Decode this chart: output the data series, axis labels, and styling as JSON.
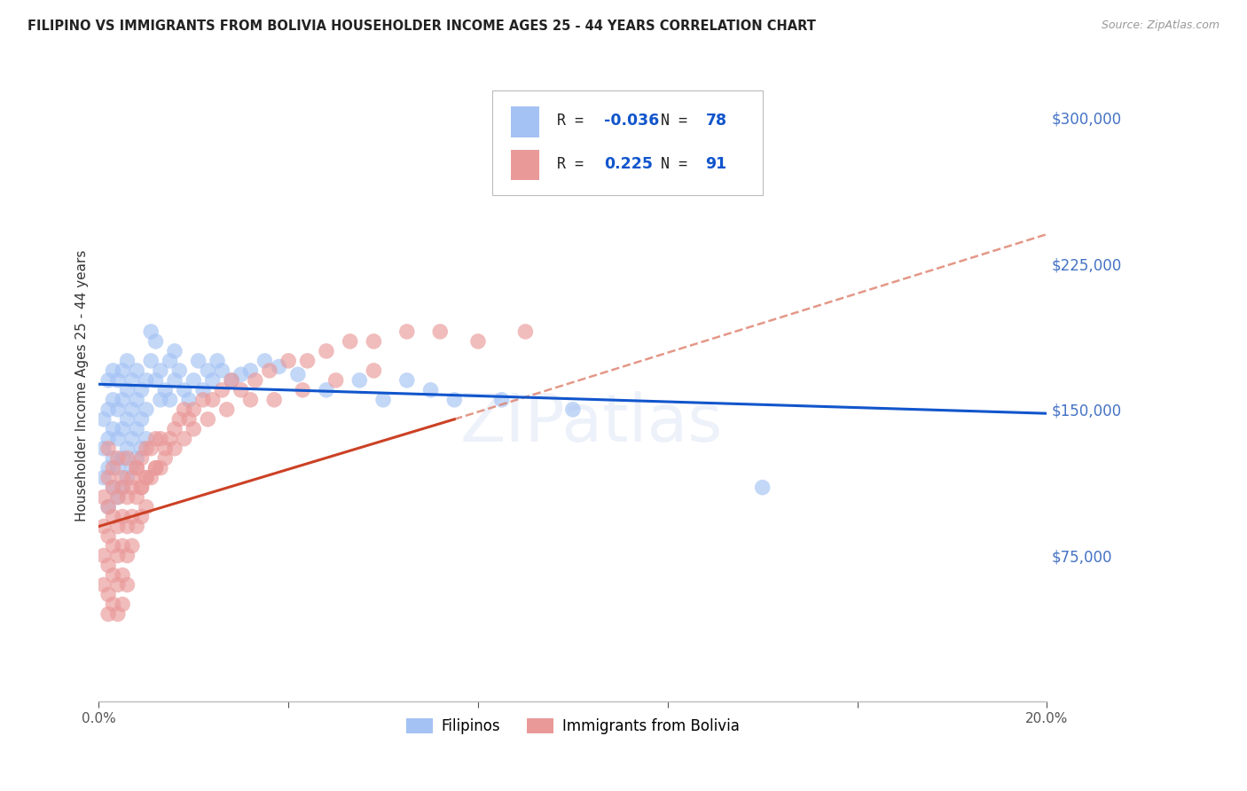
{
  "title": "FILIPINO VS IMMIGRANTS FROM BOLIVIA HOUSEHOLDER INCOME AGES 25 - 44 YEARS CORRELATION CHART",
  "source": "Source: ZipAtlas.com",
  "ylabel": "Householder Income Ages 25 - 44 years",
  "xlim": [
    0.0,
    0.2
  ],
  "ylim": [
    0,
    325000
  ],
  "ytick_labels_right": [
    "$75,000",
    "$150,000",
    "$225,000",
    "$300,000"
  ],
  "ytick_values_right": [
    75000,
    150000,
    225000,
    300000
  ],
  "color_filipino": "#a4c2f4",
  "color_bolivia": "#ea9999",
  "color_line_filipino": "#1155cc",
  "color_line_bolivia": "#cc4125",
  "color_line_bolivia_dash": "#dd7e6b",
  "watermark": "ZIPatlas",
  "legend_R_filipino": "-0.036",
  "legend_N_filipino": "78",
  "legend_R_bolivia": "0.225",
  "legend_N_bolivia": "91",
  "background_color": "#ffffff",
  "grid_color": "#cccccc",
  "axis_label_color": "#4472c4",
  "filipino_x": [
    0.001,
    0.001,
    0.001,
    0.002,
    0.002,
    0.002,
    0.002,
    0.002,
    0.003,
    0.003,
    0.003,
    0.003,
    0.003,
    0.004,
    0.004,
    0.004,
    0.004,
    0.004,
    0.005,
    0.005,
    0.005,
    0.005,
    0.005,
    0.006,
    0.006,
    0.006,
    0.006,
    0.006,
    0.007,
    0.007,
    0.007,
    0.007,
    0.008,
    0.008,
    0.008,
    0.008,
    0.009,
    0.009,
    0.009,
    0.01,
    0.01,
    0.01,
    0.011,
    0.011,
    0.012,
    0.012,
    0.013,
    0.013,
    0.014,
    0.015,
    0.015,
    0.016,
    0.016,
    0.017,
    0.018,
    0.019,
    0.02,
    0.021,
    0.022,
    0.023,
    0.024,
    0.025,
    0.026,
    0.028,
    0.03,
    0.032,
    0.035,
    0.038,
    0.042,
    0.048,
    0.055,
    0.06,
    0.065,
    0.07,
    0.075,
    0.085,
    0.1,
    0.14
  ],
  "filipino_y": [
    115000,
    130000,
    145000,
    100000,
    120000,
    135000,
    150000,
    165000,
    110000,
    125000,
    140000,
    155000,
    170000,
    105000,
    120000,
    135000,
    150000,
    165000,
    110000,
    125000,
    140000,
    155000,
    170000,
    115000,
    130000,
    145000,
    160000,
    175000,
    120000,
    135000,
    150000,
    165000,
    125000,
    140000,
    155000,
    170000,
    130000,
    145000,
    160000,
    135000,
    150000,
    165000,
    175000,
    190000,
    185000,
    165000,
    155000,
    170000,
    160000,
    175000,
    155000,
    165000,
    180000,
    170000,
    160000,
    155000,
    165000,
    175000,
    160000,
    170000,
    165000,
    175000,
    170000,
    165000,
    168000,
    170000,
    175000,
    172000,
    168000,
    160000,
    165000,
    155000,
    165000,
    160000,
    155000,
    155000,
    150000,
    110000
  ],
  "bolivia_x": [
    0.001,
    0.001,
    0.001,
    0.001,
    0.002,
    0.002,
    0.002,
    0.002,
    0.002,
    0.002,
    0.003,
    0.003,
    0.003,
    0.003,
    0.003,
    0.004,
    0.004,
    0.004,
    0.004,
    0.004,
    0.005,
    0.005,
    0.005,
    0.005,
    0.005,
    0.006,
    0.006,
    0.006,
    0.006,
    0.007,
    0.007,
    0.007,
    0.008,
    0.008,
    0.008,
    0.009,
    0.009,
    0.009,
    0.01,
    0.01,
    0.01,
    0.011,
    0.011,
    0.012,
    0.012,
    0.013,
    0.013,
    0.014,
    0.015,
    0.016,
    0.017,
    0.018,
    0.019,
    0.02,
    0.022,
    0.024,
    0.026,
    0.028,
    0.03,
    0.033,
    0.036,
    0.04,
    0.044,
    0.048,
    0.053,
    0.058,
    0.065,
    0.072,
    0.08,
    0.09,
    0.002,
    0.003,
    0.004,
    0.005,
    0.006,
    0.007,
    0.008,
    0.009,
    0.01,
    0.012,
    0.014,
    0.016,
    0.018,
    0.02,
    0.023,
    0.027,
    0.032,
    0.037,
    0.043,
    0.05,
    0.058
  ],
  "bolivia_y": [
    105000,
    90000,
    75000,
    60000,
    115000,
    100000,
    85000,
    70000,
    55000,
    45000,
    110000,
    95000,
    80000,
    65000,
    50000,
    105000,
    90000,
    75000,
    60000,
    45000,
    110000,
    95000,
    80000,
    65000,
    50000,
    105000,
    90000,
    75000,
    60000,
    110000,
    95000,
    80000,
    120000,
    105000,
    90000,
    125000,
    110000,
    95000,
    130000,
    115000,
    100000,
    130000,
    115000,
    135000,
    120000,
    135000,
    120000,
    130000,
    135000,
    140000,
    145000,
    150000,
    145000,
    150000,
    155000,
    155000,
    160000,
    165000,
    160000,
    165000,
    170000,
    175000,
    175000,
    180000,
    185000,
    185000,
    190000,
    190000,
    185000,
    190000,
    130000,
    120000,
    125000,
    115000,
    125000,
    115000,
    120000,
    110000,
    115000,
    120000,
    125000,
    130000,
    135000,
    140000,
    145000,
    150000,
    155000,
    155000,
    160000,
    165000,
    170000
  ]
}
